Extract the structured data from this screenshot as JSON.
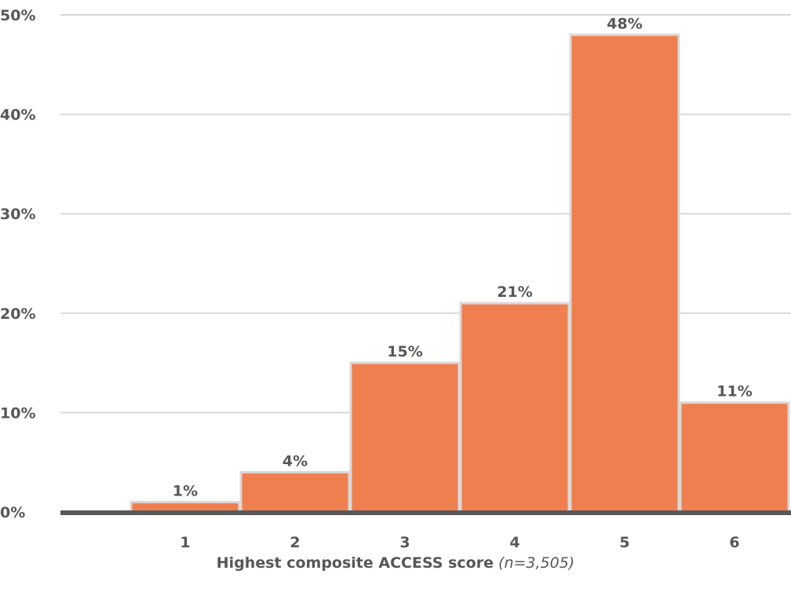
{
  "chart_data": {
    "type": "bar",
    "categories": [
      "1",
      "2",
      "3",
      "4",
      "5",
      "6"
    ],
    "values": [
      1,
      4,
      15,
      21,
      48,
      11
    ],
    "value_labels": [
      "1%",
      "4%",
      "15%",
      "21%",
      "48%",
      "11%"
    ],
    "title": "",
    "xlabel": "Highest composite ACCESS score",
    "xlabel_note": "(n=3,505)",
    "ylabel": "",
    "ylim": [
      0,
      50
    ],
    "yticks": [
      0,
      10,
      20,
      30,
      40,
      50
    ],
    "ytick_labels": [
      "0%",
      "10%",
      "20%",
      "30%",
      "40%",
      "50%"
    ],
    "grid": true,
    "legend": "none",
    "colors": {
      "bar": "#F07F4F",
      "bar_border": "#D9D9D9",
      "grid": "#D9D9D9",
      "axis": "#595959",
      "text": "#575757"
    }
  }
}
